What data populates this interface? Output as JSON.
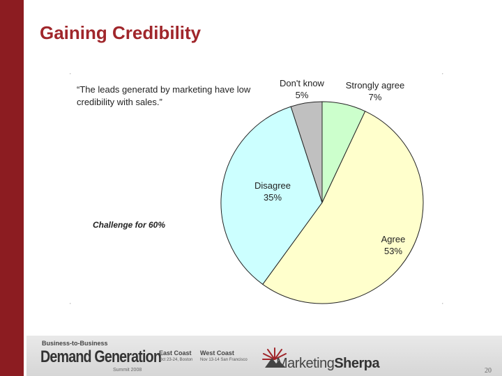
{
  "slide": {
    "title": "Gaining Credibility",
    "page_number": "20"
  },
  "quote": "“The leads generatd by marketing have low credibility with sales.”",
  "callout": "Challenge for 60%",
  "chart_data": {
    "type": "pie",
    "title": "",
    "slices": [
      {
        "label": "Strongly agree",
        "value": 7,
        "pct_label": "7%",
        "color": "#ccffcc"
      },
      {
        "label": "Agree",
        "value": 53,
        "pct_label": "53%",
        "color": "#ffffcc"
      },
      {
        "label": "Disagree",
        "value": 35,
        "pct_label": "35%",
        "color": "#ccffff"
      },
      {
        "label": "Don't know",
        "value": 5,
        "pct_label": "5%",
        "color": "#c0c0c0"
      }
    ]
  },
  "footer": {
    "b2b": "Business-to-Business",
    "brand": "Demand Generation",
    "summit": "Summit 2008",
    "east_title": "East Coast",
    "east_dates": "Oct 23-24, Boston",
    "west_title": "West Coast",
    "west_dates": "Nov 13-14 San Francisco",
    "logo_part1": "Marketing",
    "logo_part2": "Sherpa"
  },
  "colors": {
    "accent": "#8c1c21",
    "title": "#a0262b"
  }
}
